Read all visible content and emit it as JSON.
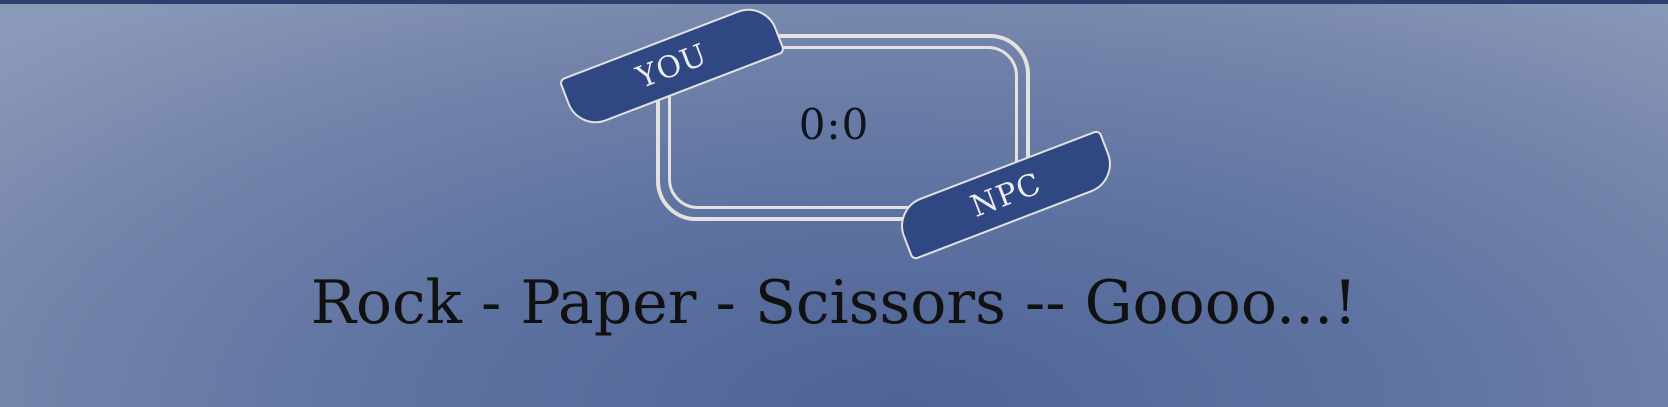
{
  "scoreboard": {
    "score": "0:0",
    "player_label": "YOU",
    "opponent_label": "NPC"
  },
  "headline": "Rock - Paper - Scissors -- Goooo...!",
  "colors": {
    "tag_fill": "#2f4783",
    "frame": "#e4e2de",
    "top_bar": "#2d3f6c",
    "text": "#111111"
  }
}
